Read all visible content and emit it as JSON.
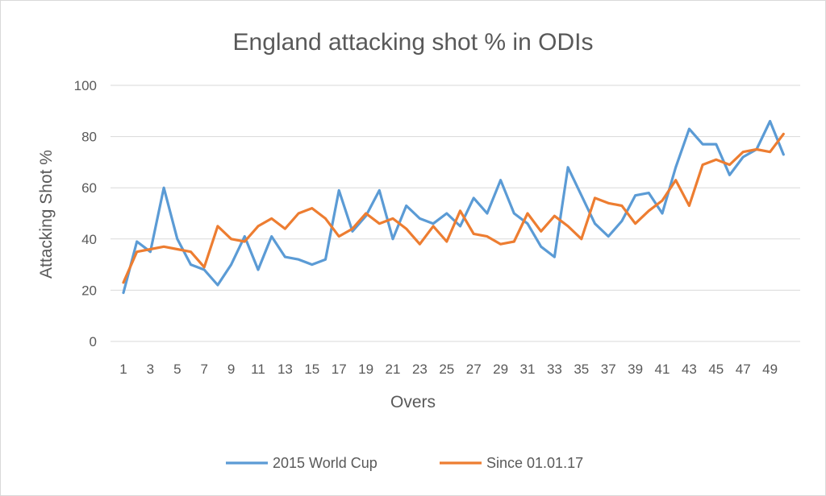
{
  "chart_data": {
    "type": "line",
    "title": "England attacking shot % in ODIs",
    "xlabel": "Overs",
    "ylabel": "Attacking Shot %",
    "ylim": [
      0,
      100
    ],
    "y_ticks": [
      "0",
      "20",
      "40",
      "60",
      "80",
      "100"
    ],
    "x": [
      1,
      2,
      3,
      4,
      5,
      6,
      7,
      8,
      9,
      10,
      11,
      12,
      13,
      14,
      15,
      16,
      17,
      18,
      19,
      20,
      21,
      22,
      23,
      24,
      25,
      26,
      27,
      28,
      29,
      30,
      31,
      32,
      33,
      34,
      35,
      36,
      37,
      38,
      39,
      40,
      41,
      42,
      43,
      44,
      45,
      46,
      47,
      48,
      49,
      50
    ],
    "x_tick_labels": [
      "1",
      "3",
      "5",
      "7",
      "9",
      "11",
      "13",
      "15",
      "17",
      "19",
      "21",
      "23",
      "25",
      "27",
      "29",
      "31",
      "33",
      "35",
      "37",
      "39",
      "41",
      "43",
      "45",
      "47",
      "49"
    ],
    "grid": true,
    "legend_position": "bottom",
    "series": [
      {
        "name": "2015 World Cup",
        "color": "#5b9bd5",
        "values": [
          19,
          39,
          35,
          60,
          40,
          30,
          28,
          22,
          30,
          41,
          28,
          41,
          33,
          32,
          30,
          32,
          59,
          43,
          49,
          59,
          40,
          53,
          48,
          46,
          50,
          45,
          56,
          50,
          63,
          50,
          46,
          37,
          33,
          68,
          57,
          46,
          41,
          47,
          57,
          58,
          50,
          68,
          83,
          77,
          77,
          65,
          72,
          75,
          86,
          73
        ]
      },
      {
        "name": "Since 01.01.17",
        "color": "#ed7d31",
        "values": [
          23,
          35,
          36,
          37,
          36,
          35,
          29,
          45,
          40,
          39,
          45,
          48,
          44,
          50,
          52,
          48,
          41,
          44,
          50,
          46,
          48,
          44,
          38,
          45,
          39,
          51,
          42,
          41,
          38,
          39,
          50,
          43,
          49,
          45,
          40,
          56,
          54,
          53,
          46,
          51,
          55,
          63,
          53,
          69,
          71,
          69,
          74,
          75,
          74,
          81
        ]
      }
    ]
  }
}
